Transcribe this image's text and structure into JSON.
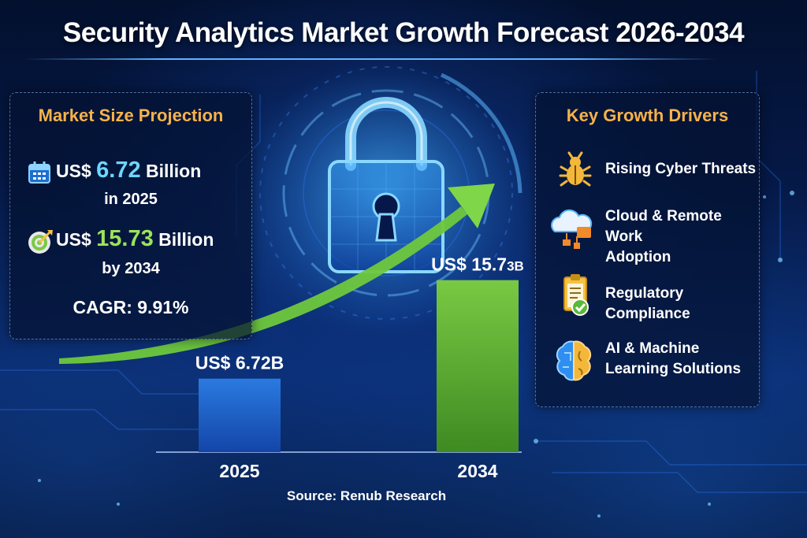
{
  "title": "Security Analytics Market Growth Forecast 2026-2034",
  "market_size": {
    "heading": "Market Size Projection",
    "items": [
      {
        "prefix": "US$ ",
        "value": "6.72",
        "suffix": " Billion",
        "sub": "in 2025",
        "icon": "calendar-icon",
        "value_color": "#6ed6ff"
      },
      {
        "prefix": "US$ ",
        "value": "15.73",
        "suffix": " Billion",
        "sub": "by 2034",
        "icon": "target-icon",
        "value_color": "#9be35a"
      }
    ],
    "cagr": "CAGR: 9.91%"
  },
  "drivers": {
    "heading": "Key Growth Drivers",
    "items": [
      {
        "lines": [
          "Rising Cyber Threats"
        ],
        "icon": "bug-icon"
      },
      {
        "lines": [
          "Cloud & Remote Work",
          "Adoption"
        ],
        "icon": "cloud-network-icon"
      },
      {
        "lines": [
          "Regulatory Compliance"
        ],
        "icon": "clipboard-check-icon"
      },
      {
        "lines": [
          "AI & Machine",
          "Learning Solutions"
        ],
        "icon": "brain-icon"
      }
    ]
  },
  "chart_data": {
    "type": "bar",
    "title": "Security Analytics Market Growth Forecast 2026-2034",
    "categories": [
      "2025",
      "2034"
    ],
    "values": [
      6.72,
      15.73
    ],
    "units": "US$ Billion",
    "data_labels": [
      {
        "main": "US$ 6.72B",
        "small": ""
      },
      {
        "main": "US$ 15.7",
        "small": "3B"
      }
    ],
    "bar_colors": [
      "#2a7ae0",
      "#7ac943"
    ],
    "ylim": [
      0,
      17
    ],
    "xlabel": "",
    "ylabel": "",
    "grid": false,
    "annotation": "growth arrow"
  },
  "source": "Source: Renub Research"
}
